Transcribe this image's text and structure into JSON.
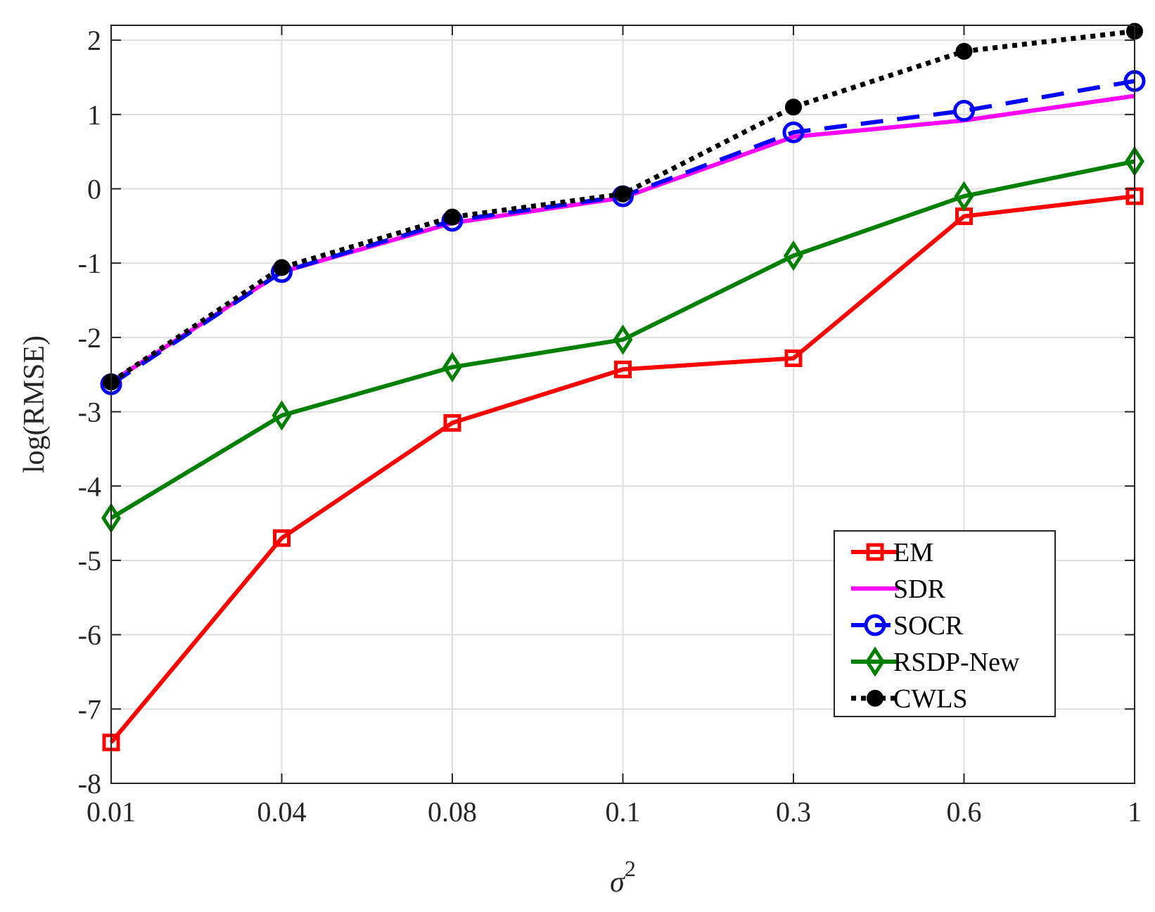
{
  "chart_data": {
    "type": "line",
    "title": "",
    "xlabel": "σ",
    "xlabel_superscript": "2",
    "ylabel": "log(RMSE)",
    "x_categories": [
      "0.01",
      "0.04",
      "0.08",
      "0.1",
      "0.3",
      "0.6",
      "1"
    ],
    "y_ticks": [
      2,
      1,
      0,
      -1,
      -2,
      -3,
      -4,
      -5,
      -6,
      -7,
      -8
    ],
    "ylim": [
      -8,
      2.2
    ],
    "grid": true,
    "legend_position": "bottom-right",
    "series": [
      {
        "name": "EM",
        "color": "#ff0000",
        "marker": "square",
        "dash": "solid",
        "values": [
          -7.45,
          -4.7,
          -3.15,
          -2.43,
          -2.28,
          -0.37,
          -0.1
        ]
      },
      {
        "name": "SDR",
        "color": "#ff00ff",
        "marker": "none",
        "dash": "solid",
        "values": [
          -2.6,
          -1.12,
          -0.46,
          -0.12,
          0.7,
          0.92,
          1.25
        ]
      },
      {
        "name": "SOCR",
        "color": "#0000ff",
        "marker": "circle",
        "dash": "dashed",
        "values": [
          -2.63,
          -1.12,
          -0.43,
          -0.1,
          0.76,
          1.05,
          1.45
        ]
      },
      {
        "name": "RSDP-New",
        "color": "#008000",
        "marker": "diamond",
        "dash": "solid",
        "values": [
          -4.43,
          -3.05,
          -2.4,
          -2.03,
          -0.9,
          -0.1,
          0.37
        ]
      },
      {
        "name": "CWLS",
        "color": "#000000",
        "marker": "dot",
        "dash": "dotted",
        "values": [
          -2.6,
          -1.06,
          -0.38,
          -0.07,
          1.1,
          1.85,
          2.12
        ]
      }
    ]
  }
}
